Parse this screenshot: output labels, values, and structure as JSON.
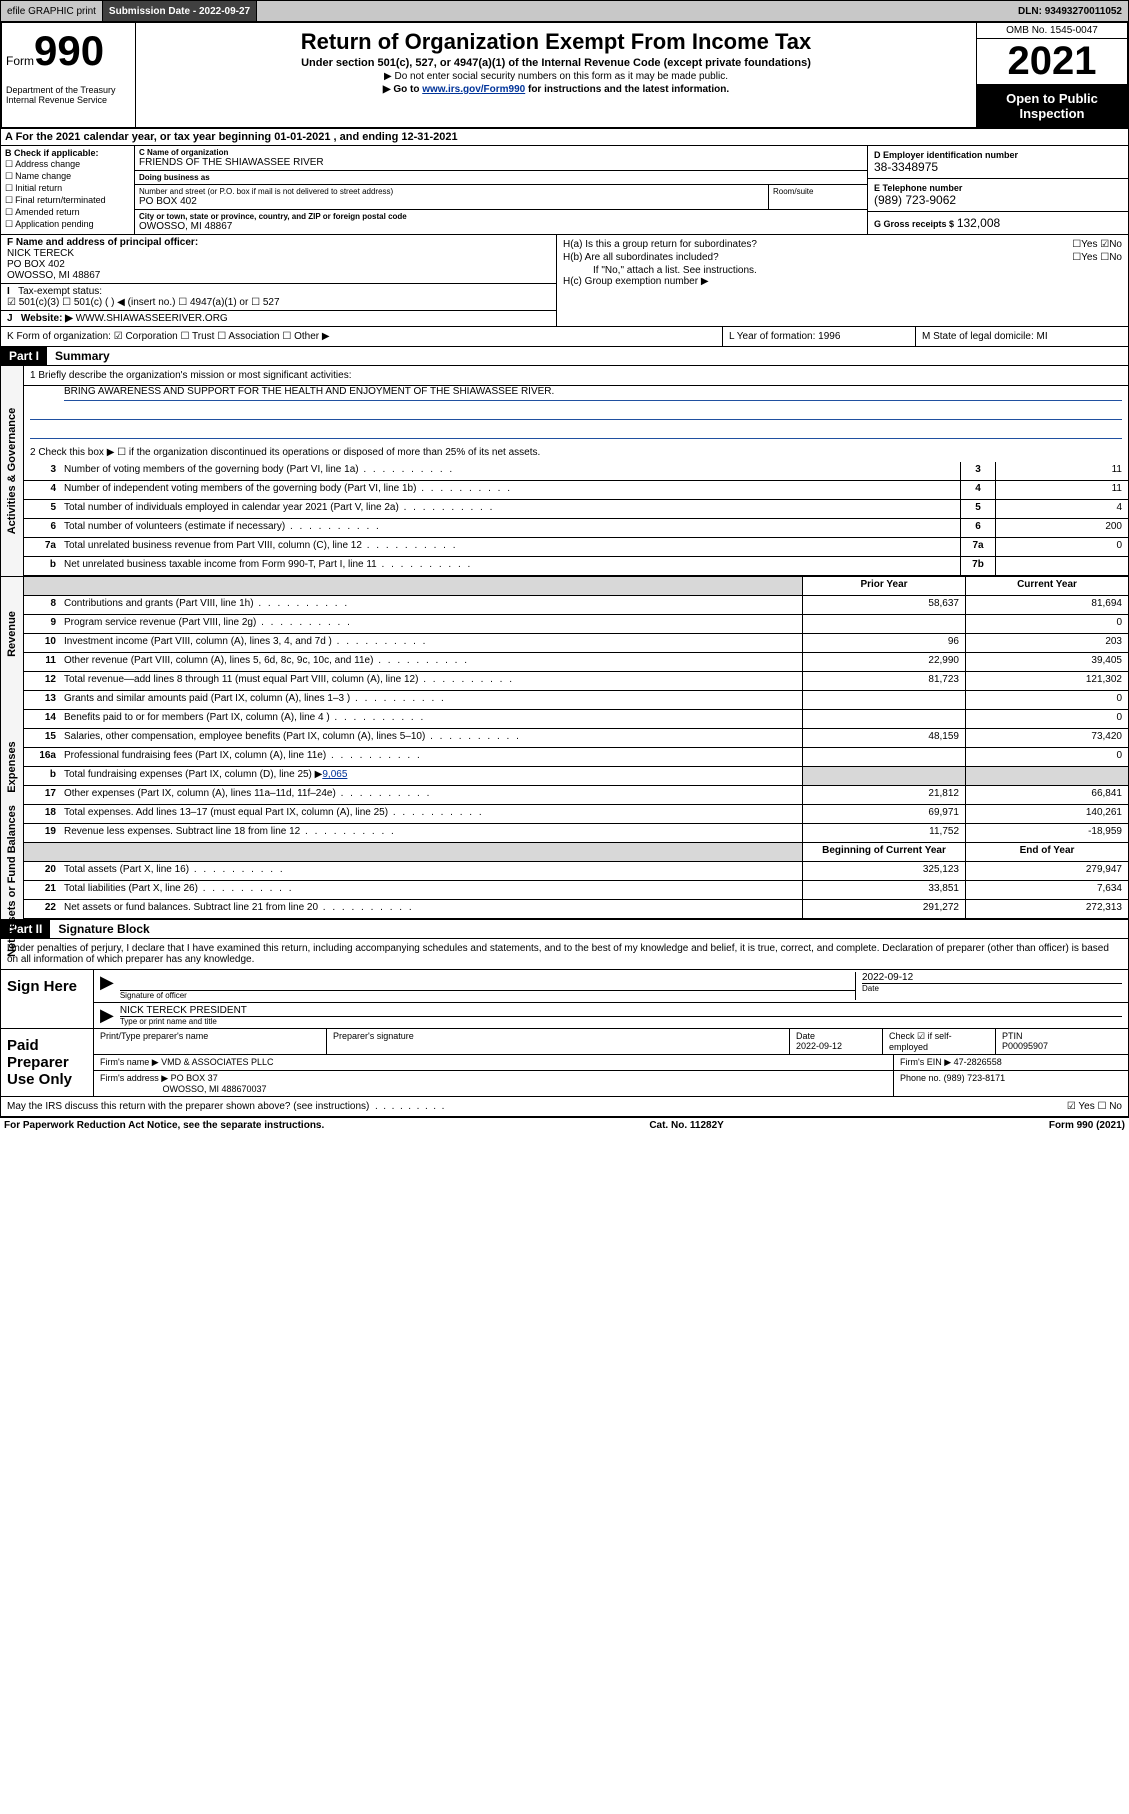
{
  "top_bar": {
    "efile": "efile GRAPHIC print",
    "submission_label": "Submission Date",
    "submission_date": "2022-09-27",
    "dln_label": "DLN:",
    "dln": "93493270011052"
  },
  "header": {
    "form_word": "Form",
    "form_num": "990",
    "dept": "Department of the Treasury Internal Revenue Service",
    "title": "Return of Organization Exempt From Income Tax",
    "sub": "Under section 501(c), 527, or 4947(a)(1) of the Internal Revenue Code (except private foundations)",
    "line1": "▶ Do not enter social security numbers on this form as it may be made public.",
    "line2_pre": "▶ Go to ",
    "line2_link": "www.irs.gov/Form990",
    "line2_post": " for instructions and the latest information.",
    "omb": "OMB No. 1545-0047",
    "year": "2021",
    "inspection": "Open to Public Inspection"
  },
  "row_a": "A For the 2021 calendar year, or tax year beginning 01-01-2021   , and ending 12-31-2021",
  "col_b": {
    "hdr": "B Check if applicable:",
    "items": [
      "Address change",
      "Name change",
      "Initial return",
      "Final return/terminated",
      "Amended return",
      "Application pending"
    ]
  },
  "col_c": {
    "name_label": "C Name of organization",
    "name": "FRIENDS OF THE SHIAWASSEE RIVER",
    "dba_label": "Doing business as",
    "dba": "",
    "street_label": "Number and street (or P.O. box if mail is not delivered to street address)",
    "room_label": "Room/suite",
    "street": "PO BOX 402",
    "city_label": "City or town, state or province, country, and ZIP or foreign postal code",
    "city": "OWOSSO, MI  48867"
  },
  "col_d": {
    "ein_label": "D Employer identification number",
    "ein": "38-3348975",
    "phone_label": "E Telephone number",
    "phone": "(989) 723-9062",
    "gross_label": "G Gross receipts $",
    "gross": "132,008"
  },
  "f": {
    "label": "F Name and address of principal officer:",
    "name": "NICK TERECK",
    "addr1": "PO BOX 402",
    "addr2": "OWOSSO, MI  48867"
  },
  "i": {
    "label": "Tax-exempt status:",
    "opts": "☑ 501(c)(3)   ☐ 501(c) (  ) ◀ (insert no.)    ☐ 4947(a)(1) or   ☐ 527"
  },
  "j": {
    "label": "Website: ▶",
    "val": "WWW.SHIAWASSEERIVER.ORG"
  },
  "h": {
    "a": "H(a)  Is this a group return for subordinates?",
    "a_ans": "☐Yes ☑No",
    "b": "H(b)  Are all subordinates included?",
    "b_ans": "☐Yes ☐No",
    "b_note": "If \"No,\" attach a list. See instructions.",
    "c": "H(c)  Group exemption number ▶"
  },
  "k": "K Form of organization:  ☑ Corporation  ☐ Trust  ☐ Association  ☐ Other ▶",
  "l": "L Year of formation: 1996",
  "m": "M State of legal domicile: MI",
  "partI": "Part I",
  "partI_title": "Summary",
  "mission_q": "1   Briefly describe the organization's mission or most significant activities:",
  "mission": "BRING AWARENESS AND SUPPORT FOR THE HEALTH AND ENJOYMENT OF THE SHIAWASSEE RIVER.",
  "line2": "2   Check this box ▶ ☐ if the organization discontinued its operations or disposed of more than 25% of its net assets.",
  "gov_lines": [
    {
      "n": "3",
      "d": "Number of voting members of the governing body (Part VI, line 1a)",
      "box": "3",
      "v": "11"
    },
    {
      "n": "4",
      "d": "Number of independent voting members of the governing body (Part VI, line 1b)",
      "box": "4",
      "v": "11"
    },
    {
      "n": "5",
      "d": "Total number of individuals employed in calendar year 2021 (Part V, line 2a)",
      "box": "5",
      "v": "4"
    },
    {
      "n": "6",
      "d": "Total number of volunteers (estimate if necessary)",
      "box": "6",
      "v": "200"
    },
    {
      "n": "7a",
      "d": "Total unrelated business revenue from Part VIII, column (C), line 12",
      "box": "7a",
      "v": "0"
    },
    {
      "n": "b",
      "d": "Net unrelated business taxable income from Form 990-T, Part I, line 11",
      "box": "7b",
      "v": ""
    }
  ],
  "col_hdrs": {
    "prior": "Prior Year",
    "curr": "Current Year"
  },
  "rev_lines": [
    {
      "n": "8",
      "d": "Contributions and grants (Part VIII, line 1h)",
      "p": "58,637",
      "c": "81,694"
    },
    {
      "n": "9",
      "d": "Program service revenue (Part VIII, line 2g)",
      "p": "",
      "c": "0"
    },
    {
      "n": "10",
      "d": "Investment income (Part VIII, column (A), lines 3, 4, and 7d )",
      "p": "96",
      "c": "203"
    },
    {
      "n": "11",
      "d": "Other revenue (Part VIII, column (A), lines 5, 6d, 8c, 9c, 10c, and 11e)",
      "p": "22,990",
      "c": "39,405"
    },
    {
      "n": "12",
      "d": "Total revenue—add lines 8 through 11 (must equal Part VIII, column (A), line 12)",
      "p": "81,723",
      "c": "121,302"
    }
  ],
  "exp_lines": [
    {
      "n": "13",
      "d": "Grants and similar amounts paid (Part IX, column (A), lines 1–3 )",
      "p": "",
      "c": "0"
    },
    {
      "n": "14",
      "d": "Benefits paid to or for members (Part IX, column (A), line 4 )",
      "p": "",
      "c": "0"
    },
    {
      "n": "15",
      "d": "Salaries, other compensation, employee benefits (Part IX, column (A), lines 5–10)",
      "p": "48,159",
      "c": "73,420"
    },
    {
      "n": "16a",
      "d": "Professional fundraising fees (Part IX, column (A), line 11e)",
      "p": "",
      "c": "0"
    }
  ],
  "exp_b": {
    "n": "b",
    "d": "Total fundraising expenses (Part IX, column (D), line 25) ▶",
    "v": "9,065"
  },
  "exp_lines2": [
    {
      "n": "17",
      "d": "Other expenses (Part IX, column (A), lines 11a–11d, 11f–24e)",
      "p": "21,812",
      "c": "66,841"
    },
    {
      "n": "18",
      "d": "Total expenses. Add lines 13–17 (must equal Part IX, column (A), line 25)",
      "p": "69,971",
      "c": "140,261"
    },
    {
      "n": "19",
      "d": "Revenue less expenses. Subtract line 18 from line 12",
      "p": "11,752",
      "c": "-18,959"
    }
  ],
  "na_hdrs": {
    "prior": "Beginning of Current Year",
    "curr": "End of Year"
  },
  "na_lines": [
    {
      "n": "20",
      "d": "Total assets (Part X, line 16)",
      "p": "325,123",
      "c": "279,947"
    },
    {
      "n": "21",
      "d": "Total liabilities (Part X, line 26)",
      "p": "33,851",
      "c": "7,634"
    },
    {
      "n": "22",
      "d": "Net assets or fund balances. Subtract line 21 from line 20",
      "p": "291,272",
      "c": "272,313"
    }
  ],
  "partII": "Part II",
  "partII_title": "Signature Block",
  "sig_decl": "Under penalties of perjury, I declare that I have examined this return, including accompanying schedules and statements, and to the best of my knowledge and belief, it is true, correct, and complete. Declaration of preparer (other than officer) is based on all information of which preparer has any knowledge.",
  "sign_here": "Sign Here",
  "sig_officer_label": "Signature of officer",
  "sig_date_label": "Date",
  "sig_date": "2022-09-12",
  "sig_name": "NICK TERECK PRESIDENT",
  "sig_name_label": "Type or print name and title",
  "paid": "Paid Preparer Use Only",
  "prep": {
    "h1": "Print/Type preparer's name",
    "h2": "Preparer's signature",
    "h3": "Date",
    "h3v": "2022-09-12",
    "h4": "Check ☑ if self-employed",
    "h5": "PTIN",
    "h5v": "P00095907",
    "firm_label": "Firm's name    ▶",
    "firm": "VMD & ASSOCIATES PLLC",
    "ein_label": "Firm's EIN ▶",
    "ein": "47-2826558",
    "addr_label": "Firm's address ▶",
    "addr1": "PO BOX 37",
    "addr2": "OWOSSO, MI  488670037",
    "phone_label": "Phone no.",
    "phone": "(989) 723-8171"
  },
  "discuss": "May the IRS discuss this return with the preparer shown above? (see instructions)",
  "discuss_ans": "☑ Yes  ☐ No",
  "footer": {
    "l": "For Paperwork Reduction Act Notice, see the separate instructions.",
    "m": "Cat. No. 11282Y",
    "r": "Form 990 (2021)"
  }
}
